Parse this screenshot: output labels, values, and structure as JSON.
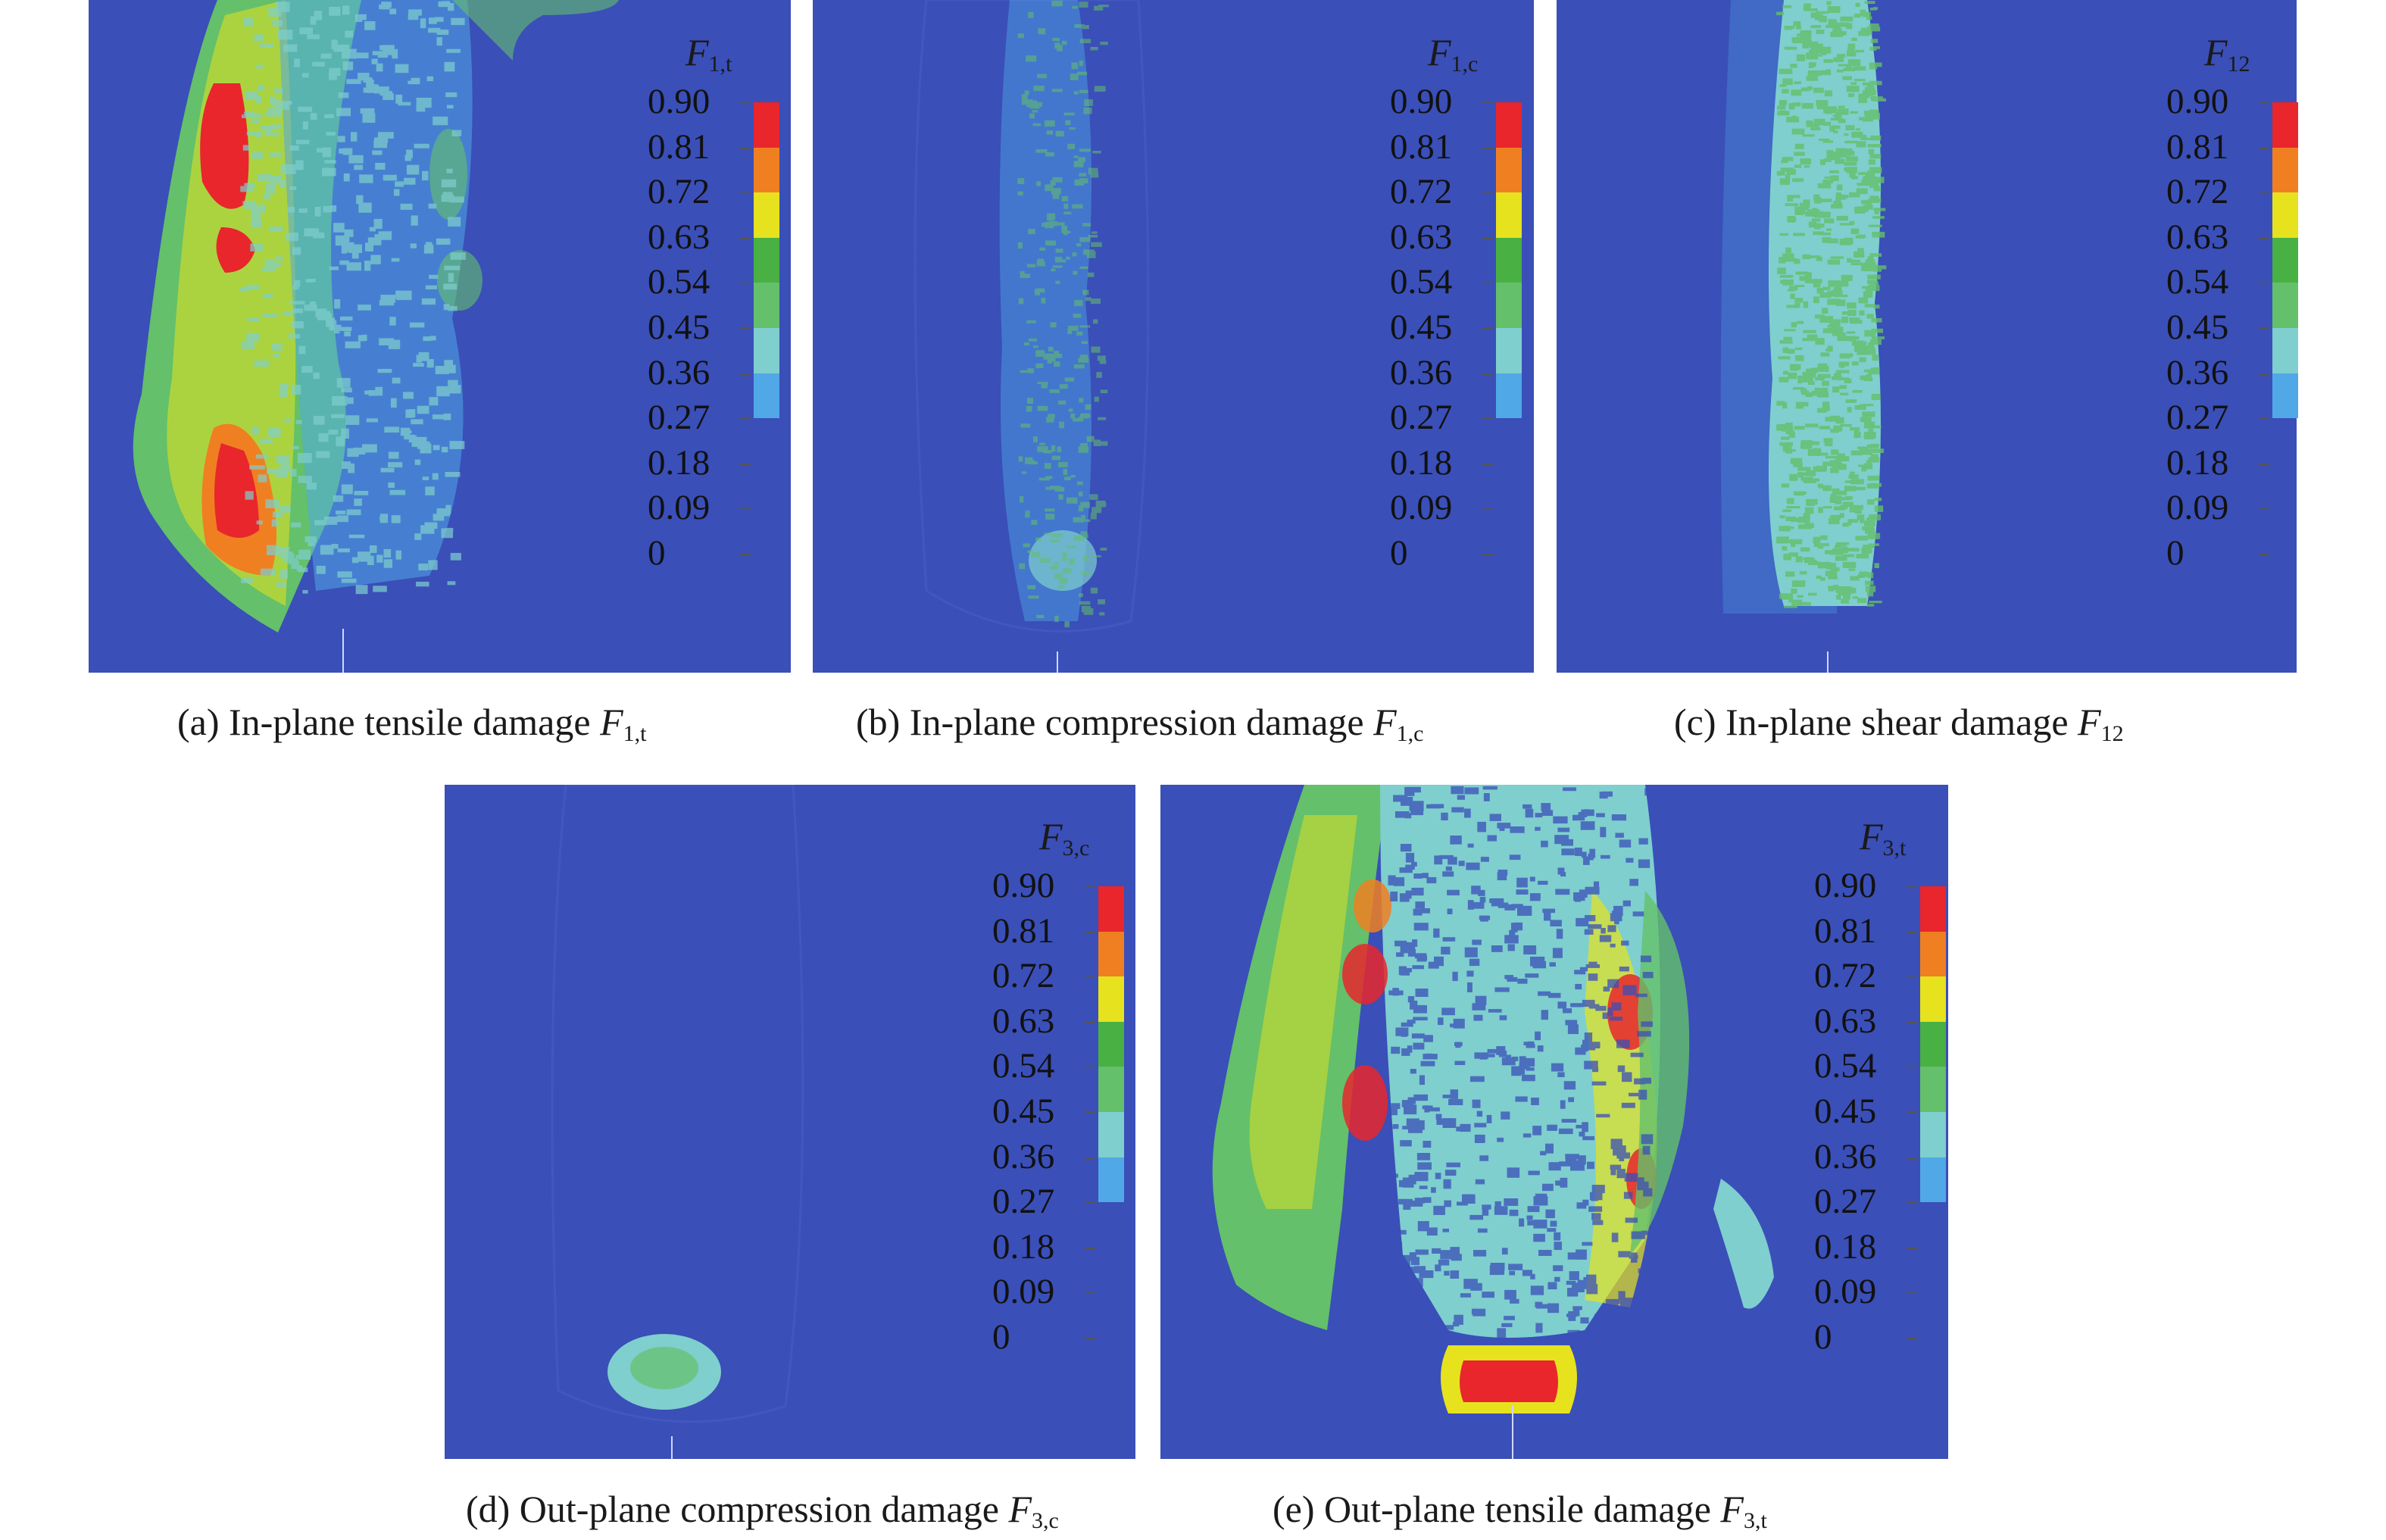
{
  "colorbar": {
    "ticks": [
      "0.90",
      "0.81",
      "0.72",
      "0.63",
      "0.54",
      "0.45",
      "0.36",
      "0.27",
      "0.18",
      "0.09",
      "0"
    ],
    "colors": [
      "#e8262c",
      "#f07f22",
      "#e6e21e",
      "#49b043",
      "#64c06a",
      "#7fcfce",
      "#50a8e6",
      "#3a4fb8"
    ]
  },
  "panels": [
    {
      "id": "a",
      "legend_symbol": "F",
      "legend_sub": "1,t",
      "caption_prefix": "(a) In-plane tensile damage ",
      "caption_symbol": "F",
      "caption_sub": "1,t"
    },
    {
      "id": "b",
      "legend_symbol": "F",
      "legend_sub": "1,c",
      "caption_prefix": "(b) In-plane compression damage ",
      "caption_symbol": "F",
      "caption_sub": "1,c"
    },
    {
      "id": "c",
      "legend_symbol": "F",
      "legend_sub": "12",
      "caption_prefix": "(c) In-plane shear damage ",
      "caption_symbol": "F",
      "caption_sub": "12"
    },
    {
      "id": "d",
      "legend_symbol": "F",
      "legend_sub": "3,c",
      "caption_prefix": "(d) Out-plane compression damage ",
      "caption_symbol": "F",
      "caption_sub": "3,c"
    },
    {
      "id": "e",
      "legend_symbol": "F",
      "legend_sub": "3,t",
      "caption_prefix": "(e) Out-plane tensile damage ",
      "caption_symbol": "F",
      "caption_sub": "3,t"
    }
  ]
}
